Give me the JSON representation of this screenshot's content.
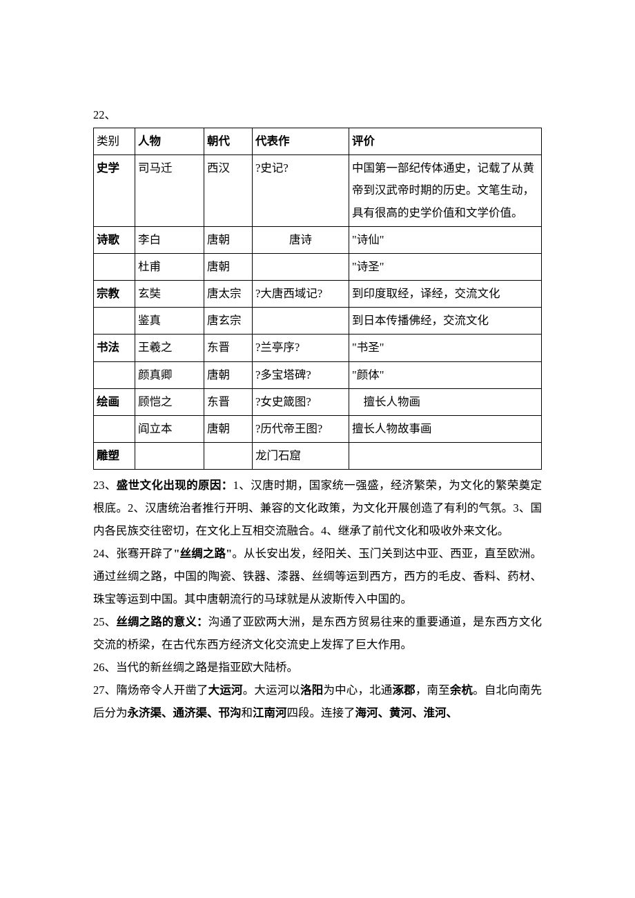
{
  "item22_label": "22、",
  "table": {
    "header": {
      "cat": "类别",
      "person": "人物",
      "dynasty": "朝代",
      "work": "代表作",
      "eval": "评价"
    },
    "rows": [
      {
        "cat": "史学",
        "cat_bold": true,
        "person": "司马迁",
        "dynasty": "西汉",
        "work": "?史记?",
        "eval": "中国第一部纪传体通史，记载了从黄帝到汉武帝时期的历史。文笔生动，具有很高的史学价值和文学价值。"
      },
      {
        "cat": "诗歌",
        "cat_bold": true,
        "person": "李白",
        "dynasty": "唐朝",
        "work_center": "唐诗",
        "eval": "\"诗仙\""
      },
      {
        "cat": "",
        "person": "杜甫",
        "dynasty": "唐朝",
        "work": "",
        "eval": "\"诗圣\""
      },
      {
        "cat": "宗教",
        "cat_bold": true,
        "person": "玄奘",
        "dynasty": "唐太宗",
        "work": "?大唐西域记?",
        "eval": "到印度取经，译经，交流文化"
      },
      {
        "cat": "",
        "person": "鉴真",
        "dynasty": "唐玄宗",
        "work": "",
        "eval": "到日本传播佛经，交流文化"
      },
      {
        "cat": "书法",
        "cat_bold": true,
        "person": "王羲之",
        "dynasty": "东晋",
        "work": "?兰亭序?",
        "eval": "\"书圣\""
      },
      {
        "cat": "",
        "person": "颜真卿",
        "dynasty": "唐朝",
        "work": "?多宝塔碑?",
        "eval": "\"颜体\""
      },
      {
        "cat": "绘画",
        "cat_bold": true,
        "person": "顾恺之",
        "dynasty": "东晋",
        "work": "?女史箴图?",
        "eval": "　擅长人物画"
      },
      {
        "cat": "",
        "person": "阎立本",
        "dynasty": "唐朝",
        "work": "?历代帝王图?",
        "eval": "擅长人物故事画"
      },
      {
        "cat": "雕塑",
        "cat_bold": true,
        "person": "",
        "dynasty": "",
        "work": "龙门石窟",
        "eval": ""
      }
    ]
  },
  "para23": {
    "prefix": "23、",
    "bold": "盛世文化出现的原因：",
    "rest": "1、汉唐时期，国家统一强盛，经济繁荣，为文化的繁荣奠定根底。2、汉唐统治者推行开明、兼容的文化政策，为文化开展创造了有利的气氛。3、国内各民族交往密切，在文化上互相交流融合。4、继承了前代文化和吸收外来文化。"
  },
  "para24": {
    "prefix": "24、张骞开辟了",
    "bold": "\"丝绸之路\"",
    "rest": "。从长安出发，经阳关、玉门关到达中亚、西亚，直至欧洲。通过丝绸之路，中国的陶瓷、铁器、漆器、丝绸等运到西方，西方的毛皮、香料、药材、珠宝等运到中国。其中唐朝流行的马球就是从波斯传入中国的。"
  },
  "para25": {
    "prefix": "25、",
    "bold": "丝绸之路的意义：",
    "rest": "沟通了亚欧两大洲，是东西方贸易往来的重要通道，是东西方文化交流的桥梁，在古代东西方经济文化交流史上发挥了巨大作用。"
  },
  "para26": "26、当代的新丝绸之路是指亚欧大陆桥。",
  "para27": {
    "seg1": "27、隋炀帝令人开凿了",
    "b1": "大运河",
    "seg2": "。大运河以",
    "b2": "洛阳",
    "seg3": "为中心，北通",
    "b3": "涿郡",
    "seg4": "，南至",
    "b4": "余杭",
    "seg5": "。自北向南先后分为",
    "b5": "永济渠、通济渠、邗沟",
    "seg6": "和",
    "b6": "江南河",
    "seg7": "四段。连接了",
    "b7": "海河、黄河、淮河、"
  }
}
